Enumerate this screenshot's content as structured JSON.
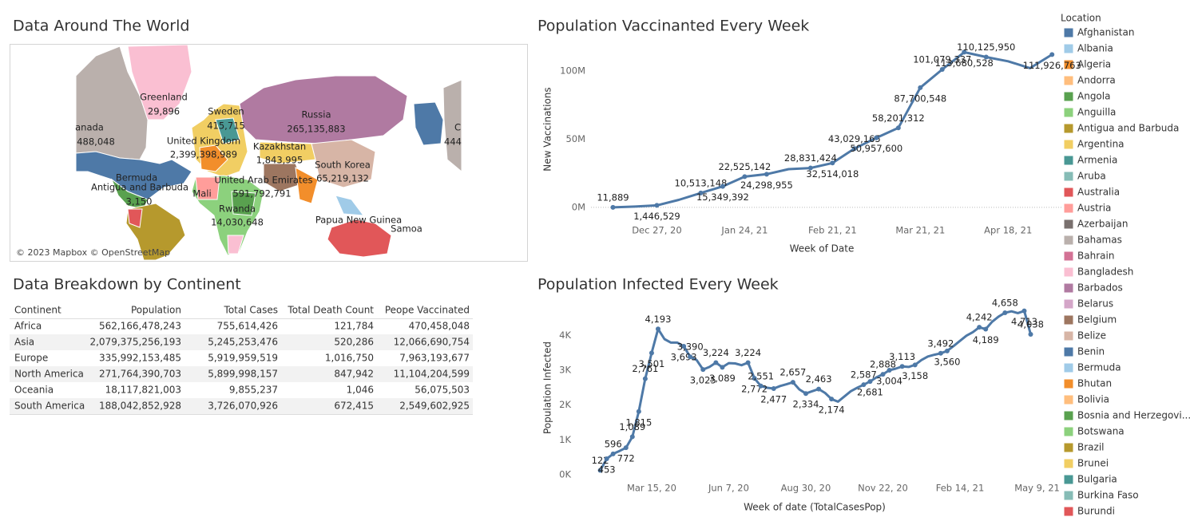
{
  "map": {
    "title": "Data Around The World",
    "labels": [
      "Greenland",
      "29,896",
      "anada",
      "488,048",
      "Sweden",
      "415,715",
      "Russia",
      "265,135,883",
      "United Kingdom",
      "2,399,398,989",
      "Kazakhstan",
      "1,843,995",
      "South Korea",
      "65,219,132",
      "Bermuda",
      "Antigua and Barbuda",
      "3,150",
      "Mali",
      "United Arab Emirates",
      "591,792,791",
      "Rwanda",
      "14,030,648",
      "Papua New Guinea",
      "Samoa",
      "C",
      "444"
    ],
    "attribution": "© 2023 Mapbox © OpenStreetMap"
  },
  "table": {
    "title": "Data Breakdown by Continent",
    "columns": [
      "Continent",
      "Population",
      "Total Cases",
      "Total Death Count",
      "Peope Vaccinated"
    ],
    "rows": [
      [
        "Africa",
        "562,166,478,243",
        "755,614,426",
        "121,784",
        "470,458,048"
      ],
      [
        "Asia",
        "2,079,375,256,193",
        "5,245,253,476",
        "520,286",
        "12,066,690,754"
      ],
      [
        "Europe",
        "335,992,153,485",
        "5,919,959,519",
        "1,016,750",
        "7,963,193,677"
      ],
      [
        "North America",
        "271,764,390,703",
        "5,899,998,157",
        "847,942",
        "11,104,204,599"
      ],
      [
        "Oceania",
        "18,117,821,003",
        "9,855,237",
        "1,046",
        "56,075,503"
      ],
      [
        "South America",
        "188,042,852,928",
        "3,726,070,926",
        "672,415",
        "2,549,602,925"
      ]
    ]
  },
  "chart_data": [
    {
      "type": "line",
      "title": "Population Vaccinanted Every Week",
      "x_label": "Week of Date",
      "y_label": "New Vaccinations",
      "color": "#4e79a7",
      "x": [
        "2020-12-13",
        "2020-12-20",
        "2020-12-27",
        "2021-01-03",
        "2021-01-10",
        "2021-01-17",
        "2021-01-24",
        "2021-01-31",
        "2021-02-07",
        "2021-02-14",
        "2021-02-21",
        "2021-02-28",
        "2021-03-07",
        "2021-03-14",
        "2021-03-21",
        "2021-03-28",
        "2021-04-04",
        "2021-04-11",
        "2021-04-18",
        "2021-04-25",
        "2021-05-02"
      ],
      "values": [
        11889,
        600000,
        1446529,
        5500000,
        10513148,
        15349392,
        22525142,
        24298955,
        28000000,
        28831424,
        32514018,
        43029165,
        50957600,
        58201312,
        87700548,
        101079337,
        113680528,
        110125950,
        107000000,
        102000000,
        111926763
      ],
      "value_labels": [
        "11,889",
        null,
        "1,446,529",
        null,
        "10,513,148",
        "15,349,392",
        "22,525,142",
        "24,298,955",
        null,
        "28,831,424",
        "32,514,018",
        "43,029,165",
        "50,957,600",
        "58,201,312",
        "87,700,548",
        "101,079,337",
        "113,680,528",
        "110,125,950",
        null,
        null,
        "111,926,763"
      ],
      "xlim": [
        "2020-12-06",
        "2021-05-05"
      ],
      "xticks": [
        {
          "value": "2020-12-27",
          "label": "Dec 27, 20"
        },
        {
          "value": "2021-01-24",
          "label": "Jan 24, 21"
        },
        {
          "value": "2021-02-21",
          "label": "Feb 21, 21"
        },
        {
          "value": "2021-03-21",
          "label": "Mar 21, 21"
        },
        {
          "value": "2021-04-18",
          "label": "Apr 18, 21"
        }
      ],
      "ylim": [
        -10000000,
        118000000
      ],
      "yticks": [
        {
          "value": 0,
          "label": "0M"
        },
        {
          "value": 50000000,
          "label": "50M"
        },
        {
          "value": 100000000,
          "label": "100M"
        }
      ],
      "grid": false,
      "zero_line": true
    },
    {
      "type": "line",
      "title": "Population Infected Every Week",
      "x_label": "Week of date (TotalCasesPop)",
      "y_label": "Population Infected",
      "color": "#4e79a7",
      "x": [
        "2020-01-19",
        "2020-01-26",
        "2020-02-02",
        "2020-02-09",
        "2020-02-16",
        "2020-02-23",
        "2020-03-01",
        "2020-03-08",
        "2020-03-15",
        "2020-03-22",
        "2020-03-29",
        "2020-04-05",
        "2020-04-12",
        "2020-04-19",
        "2020-04-26",
        "2020-05-03",
        "2020-05-10",
        "2020-05-17",
        "2020-05-24",
        "2020-05-31",
        "2020-06-07",
        "2020-06-14",
        "2020-06-21",
        "2020-06-28",
        "2020-07-05",
        "2020-07-12",
        "2020-07-19",
        "2020-07-26",
        "2020-08-02",
        "2020-08-09",
        "2020-08-16",
        "2020-08-23",
        "2020-08-30",
        "2020-09-06",
        "2020-09-13",
        "2020-09-20",
        "2020-09-27",
        "2020-10-04",
        "2020-10-11",
        "2020-10-18",
        "2020-10-25",
        "2020-11-01",
        "2020-11-08",
        "2020-11-15",
        "2020-11-22",
        "2020-11-29",
        "2020-12-06",
        "2020-12-13",
        "2020-12-20",
        "2020-12-27",
        "2021-01-03",
        "2021-01-10",
        "2021-01-17",
        "2021-01-24",
        "2021-01-31",
        "2021-02-07",
        "2021-02-14",
        "2021-02-21",
        "2021-02-28",
        "2021-03-07",
        "2021-03-14",
        "2021-03-21",
        "2021-03-28",
        "2021-04-04",
        "2021-04-11",
        "2021-04-18",
        "2021-04-25",
        "2021-05-02"
      ],
      "values": [
        122,
        453,
        596,
        680,
        772,
        1089,
        1815,
        2761,
        3501,
        4193,
        3900,
        3800,
        3800,
        3693,
        3390,
        3300,
        3025,
        3100,
        3224,
        3089,
        3210,
        3200,
        3150,
        3224,
        2772,
        2551,
        2500,
        2477,
        2550,
        2600,
        2657,
        2450,
        2334,
        2400,
        2463,
        2350,
        2174,
        2100,
        2250,
        2400,
        2500,
        2587,
        2681,
        2800,
        2888,
        3004,
        3050,
        3113,
        3100,
        3158,
        3300,
        3400,
        3450,
        3492,
        3560,
        3700,
        3850,
        4000,
        4100,
        4242,
        4189,
        4400,
        4550,
        4658,
        4700,
        4650,
        4713,
        4038
      ],
      "value_labels": [
        "122",
        "453",
        "596",
        null,
        "772",
        "1,089",
        "1,815",
        "2,761",
        "3,501",
        "4,193",
        null,
        null,
        null,
        "3,693",
        "3,390",
        null,
        "3,025",
        null,
        "3,224",
        "3,089",
        null,
        null,
        null,
        "3,224",
        "2,772",
        "2,551",
        null,
        "2,477",
        null,
        null,
        "2,657",
        null,
        "2,334",
        null,
        "2,463",
        null,
        "2,174",
        null,
        null,
        null,
        null,
        "2,587",
        "2,681",
        null,
        "2,888",
        "3,004",
        null,
        "3,113",
        null,
        "3,158",
        null,
        null,
        null,
        "3,492",
        "3,560",
        null,
        null,
        null,
        null,
        "4,242",
        "4,189",
        null,
        null,
        "4,658",
        null,
        null,
        "4,713",
        "4,038"
      ],
      "xlim": [
        "2019-12-26",
        "2021-05-12"
      ],
      "xticks": [
        {
          "value": "2020-03-15",
          "label": "Mar 15, 20"
        },
        {
          "value": "2020-06-07",
          "label": "Jun 7, 20"
        },
        {
          "value": "2020-08-30",
          "label": "Aug 30, 20"
        },
        {
          "value": "2020-11-22",
          "label": "Nov 22, 20"
        },
        {
          "value": "2021-02-14",
          "label": "Feb 14, 21"
        },
        {
          "value": "2021-05-09",
          "label": "May 9, 21"
        }
      ],
      "ylim": [
        -120,
        4820
      ],
      "yticks": [
        {
          "value": 0,
          "label": "0K"
        },
        {
          "value": 1000,
          "label": "1K"
        },
        {
          "value": 2000,
          "label": "2K"
        },
        {
          "value": 3000,
          "label": "3K"
        },
        {
          "value": 4000,
          "label": "4K"
        }
      ],
      "grid": false,
      "zero_line": false
    }
  ],
  "legend": {
    "title": "Location",
    "items": [
      {
        "name": "Afghanistan",
        "color": "#4e79a7"
      },
      {
        "name": "Albania",
        "color": "#a0cbe8"
      },
      {
        "name": "Algeria",
        "color": "#f28e2b"
      },
      {
        "name": "Andorra",
        "color": "#ffbe7d"
      },
      {
        "name": "Angola",
        "color": "#59a14f"
      },
      {
        "name": "Anguilla",
        "color": "#8cd17d"
      },
      {
        "name": "Antigua and Barbuda",
        "color": "#b6992d"
      },
      {
        "name": "Argentina",
        "color": "#f1ce63"
      },
      {
        "name": "Armenia",
        "color": "#499894"
      },
      {
        "name": "Aruba",
        "color": "#86bcb6"
      },
      {
        "name": "Australia",
        "color": "#e15759"
      },
      {
        "name": "Austria",
        "color": "#ff9d9a"
      },
      {
        "name": "Azerbaijan",
        "color": "#79706e"
      },
      {
        "name": "Bahamas",
        "color": "#bab0ac"
      },
      {
        "name": "Bahrain",
        "color": "#d37295"
      },
      {
        "name": "Bangladesh",
        "color": "#fabfd2"
      },
      {
        "name": "Barbados",
        "color": "#b07aa1"
      },
      {
        "name": "Belarus",
        "color": "#d4a6c8"
      },
      {
        "name": "Belgium",
        "color": "#9d7660"
      },
      {
        "name": "Belize",
        "color": "#d7b5a6"
      },
      {
        "name": "Benin",
        "color": "#4e79a7"
      },
      {
        "name": "Bermuda",
        "color": "#a0cbe8"
      },
      {
        "name": "Bhutan",
        "color": "#f28e2b"
      },
      {
        "name": "Bolivia",
        "color": "#ffbe7d"
      },
      {
        "name": "Bosnia and Herzegovi...",
        "color": "#59a14f"
      },
      {
        "name": "Botswana",
        "color": "#8cd17d"
      },
      {
        "name": "Brazil",
        "color": "#b6992d"
      },
      {
        "name": "Brunei",
        "color": "#f1ce63"
      },
      {
        "name": "Bulgaria",
        "color": "#499894"
      },
      {
        "name": "Burkina Faso",
        "color": "#86bcb6"
      },
      {
        "name": "Burundi",
        "color": "#e15759"
      }
    ]
  }
}
